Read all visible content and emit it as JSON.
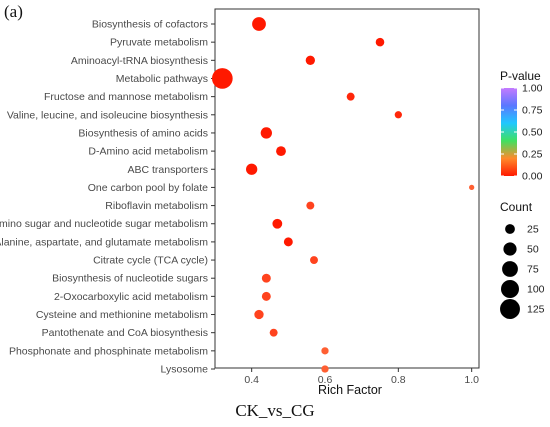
{
  "panel_label": "(a)",
  "caption": "CK_vs_CG",
  "chart_data": {
    "type": "scatter",
    "title": "",
    "xlabel": "Rich Factor",
    "ylabel": "",
    "xlim": [
      0.3,
      1.02
    ],
    "x_ticks": [
      "0.4",
      "0.6",
      "0.8",
      "1.0"
    ],
    "x_tick_values": [
      0.4,
      0.6,
      0.8,
      1.0
    ],
    "grid": false,
    "legend_position": "right",
    "categories": [
      "Biosynthesis of cofactors",
      "Pyruvate metabolism",
      "Aminoacyl-tRNA biosynthesis",
      "Metabolic pathways",
      "Fructose and mannose metabolism",
      "Valine, leucine, and isoleucine biosynthesis",
      "Biosynthesis of amino acids",
      "D-Amino acid metabolism",
      "ABC transporters",
      "One carbon pool by folate",
      "Riboflavin metabolism",
      "Amino sugar and nucleotide sugar metabolism",
      "Alanine, aspartate, and glutamate metabolism",
      "Citrate cycle (TCA cycle)",
      "Biosynthesis of nucleotide sugars",
      "2-Oxocarboxylic acid metabolism",
      "Cysteine and methionine metabolism",
      "Pantothenate and CoA biosynthesis",
      "Phosphonate and phosphinate metabolism",
      "Lysosome"
    ],
    "rich_factor": [
      0.42,
      0.75,
      0.56,
      0.32,
      0.67,
      0.8,
      0.44,
      0.48,
      0.4,
      1.0,
      0.56,
      0.47,
      0.5,
      0.57,
      0.44,
      0.44,
      0.42,
      0.46,
      0.6,
      0.6
    ],
    "count": [
      55,
      18,
      22,
      135,
      15,
      12,
      35,
      25,
      35,
      5,
      15,
      25,
      20,
      15,
      20,
      20,
      22,
      15,
      12,
      12
    ],
    "p_value": [
      0.0,
      0.0,
      0.0,
      0.0,
      0.01,
      0.01,
      0.0,
      0.0,
      0.0,
      0.05,
      0.03,
      0.0,
      0.0,
      0.03,
      0.03,
      0.03,
      0.03,
      0.03,
      0.05,
      0.05
    ],
    "color_legend": {
      "title": "P-value",
      "ticks": [
        "1.00",
        "0.75",
        "0.50",
        "0.25",
        "0.00"
      ],
      "tick_values": [
        1.0,
        0.75,
        0.5,
        0.25,
        0.0
      ],
      "colors": [
        "#ff1900",
        "#ff8a2b",
        "#40e060",
        "#20c8ff",
        "#5a78ff",
        "#c47aff"
      ]
    },
    "size_legend": {
      "title": "Count",
      "labels": [
        "25",
        "50",
        "75",
        "100",
        "125"
      ],
      "values": [
        25,
        50,
        75,
        100,
        125
      ]
    }
  }
}
